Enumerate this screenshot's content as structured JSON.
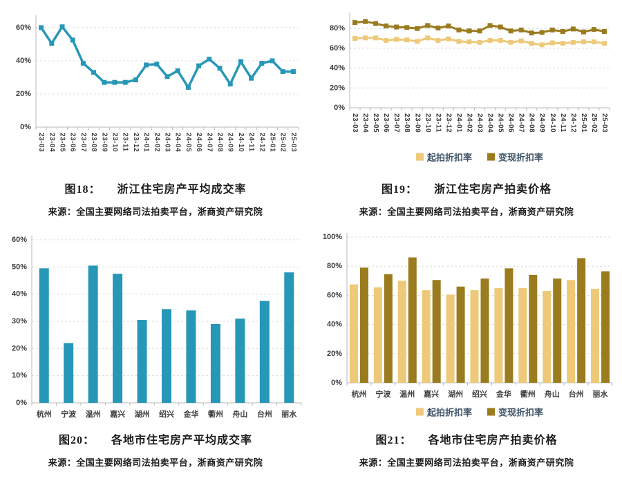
{
  "colors": {
    "teal": "#2797B7",
    "gold_light": "#EDC979",
    "gold_dark": "#9A7B1E",
    "axis_text": "#3d3d3d",
    "legend_text": "#3d5266",
    "caption_text": "#1c1c1c"
  },
  "figures": [
    {
      "caption_prefix": "图18：",
      "caption_title": "浙江住宅房产平均成交率",
      "source": "来源：全国主要网络司法拍卖平台，浙商资产研究院"
    },
    {
      "caption_prefix": "图19：",
      "caption_title": "浙江住宅房产拍卖价格",
      "source": "来源：全国主要网络司法拍卖平台，浙商资产研究院"
    },
    {
      "caption_prefix": "图20：",
      "caption_title": "各地市住宅房产平均成交率",
      "source": "来源：全国主要网络司法拍卖平台，浙商资产研究院"
    },
    {
      "caption_prefix": "图21：",
      "caption_title": "各地市住宅房产拍卖价格",
      "source": "来源：全国主要网络司法拍卖平台，浙商资产研究院"
    }
  ],
  "chart_data": [
    {
      "id": "fig18",
      "type": "line",
      "title": "浙江住宅房产平均成交率",
      "categories": [
        "23-03",
        "23-04",
        "23-05",
        "23-06",
        "23-07",
        "23-08",
        "23-09",
        "23-10",
        "23-11",
        "23-12",
        "24-01",
        "24-02",
        "24-03",
        "24-04",
        "24-05",
        "24-06",
        "24-07",
        "24-08",
        "24-09",
        "24-10",
        "24-11",
        "24-12",
        "25-01",
        "25-02",
        "25-03"
      ],
      "series": [
        {
          "name": "浙江住宅房产平均成交率",
          "color": "#2797B7",
          "values": [
            60,
            50.5,
            60.5,
            52.5,
            38.5,
            33,
            27,
            27,
            27,
            28.5,
            37.5,
            38,
            30.5,
            34,
            24,
            37,
            41,
            35.5,
            26,
            39.5,
            29.5,
            38.5,
            40,
            33.5,
            33.5
          ]
        }
      ],
      "ylim": [
        0,
        65
      ],
      "yticks": [
        0,
        20,
        40,
        60
      ],
      "grid": "dashed-horizontal",
      "legend": false
    },
    {
      "id": "fig19",
      "type": "line",
      "title": "浙江住宅房产拍卖价格",
      "categories": [
        "23-03",
        "23-04",
        "23-05",
        "23-06",
        "23-07",
        "23-08",
        "23-09",
        "23-10",
        "23-11",
        "23-12",
        "24-01",
        "24-02",
        "24-03",
        "24-04",
        "24-05",
        "24-06",
        "24-07",
        "24-08",
        "24-09",
        "24-10",
        "24-11",
        "24-12",
        "25-01",
        "25-02",
        "25-03"
      ],
      "series": [
        {
          "name": "起拍折扣率",
          "color": "#EDC979",
          "values": [
            70,
            70.5,
            70.5,
            68,
            69,
            68.5,
            67,
            70.5,
            68,
            69.5,
            67,
            66.5,
            66,
            68,
            68,
            66,
            67.5,
            65,
            63.5,
            65.5,
            65,
            66,
            66.5,
            66.5,
            65
          ]
        },
        {
          "name": "变现折扣率",
          "color": "#9A7B1E",
          "values": [
            86,
            87,
            85,
            82.5,
            81.5,
            81,
            80,
            83,
            80.5,
            82.5,
            78.5,
            77.5,
            77.5,
            83,
            81.5,
            77.5,
            78.5,
            75.5,
            76,
            78.5,
            77,
            79.5,
            76.5,
            79,
            77
          ]
        }
      ],
      "ylim": [
        0,
        92
      ],
      "yticks": [
        0,
        20,
        40,
        60,
        80
      ],
      "grid": "dashed-horizontal",
      "legend": true,
      "legend_position": "bottom"
    },
    {
      "id": "fig20",
      "type": "bar",
      "title": "各地市住宅房产平均成交率",
      "categories": [
        "杭州",
        "宁波",
        "温州",
        "嘉兴",
        "湖州",
        "绍兴",
        "金华",
        "衢州",
        "舟山",
        "台州",
        "丽水"
      ],
      "series": [
        {
          "name": "各地市住宅房产平均成交率",
          "color": "#2797B7",
          "values": [
            49.5,
            22,
            50.5,
            47.5,
            30.5,
            34.5,
            34,
            29,
            31,
            37.5,
            48
          ]
        }
      ],
      "ylim": [
        0,
        60
      ],
      "yticks": [
        0,
        10,
        20,
        30,
        40,
        50,
        60
      ],
      "grid": "dashed-horizontal",
      "legend": false
    },
    {
      "id": "fig21",
      "type": "bar",
      "title": "各地市住宅房产拍卖价格",
      "categories": [
        "杭州",
        "宁波",
        "温州",
        "嘉兴",
        "湖州",
        "绍兴",
        "金华",
        "衢州",
        "舟山",
        "台州",
        "丽水"
      ],
      "series": [
        {
          "name": "起拍折扣率",
          "color": "#EDC979",
          "values": [
            67.5,
            65.5,
            70,
            63.5,
            60.5,
            63.5,
            65,
            65,
            63,
            70.5,
            64.5
          ]
        },
        {
          "name": "变现折扣率",
          "color": "#9A7B1E",
          "values": [
            79,
            74.5,
            86,
            70.5,
            66,
            71.5,
            78.5,
            74,
            71.5,
            85.5,
            76.5
          ]
        }
      ],
      "ylim": [
        0,
        100
      ],
      "yticks": [
        0,
        20,
        40,
        60,
        80,
        100
      ],
      "grid": "dashed-horizontal",
      "legend": true,
      "legend_position": "bottom"
    }
  ]
}
